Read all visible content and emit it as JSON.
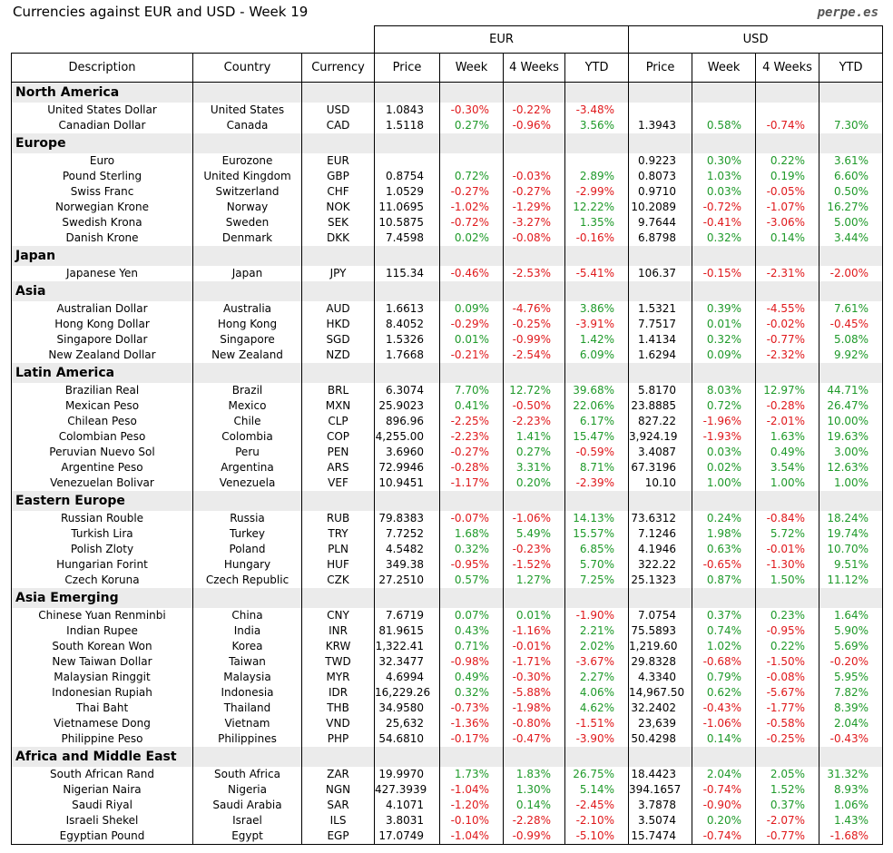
{
  "title": "Currencies against EUR and USD - Week 19",
  "source": "perpe.es",
  "groups": [
    "EUR",
    "USD"
  ],
  "columns": [
    "Description",
    "Country",
    "Currency",
    "Price",
    "Week",
    "4 Weeks",
    "YTD",
    "Price",
    "Week",
    "4 Weeks",
    "YTD"
  ],
  "sections": [
    {
      "name": "North America",
      "rows": [
        [
          "United States Dollar",
          "United States",
          "USD",
          "1.0843",
          "-0.30%",
          "-0.22%",
          "-3.48%",
          null,
          null,
          null,
          null
        ],
        [
          "Canadian Dollar",
          "Canada",
          "CAD",
          "1.5118",
          "0.27%",
          "-0.96%",
          "3.56%",
          "1.3943",
          "0.58%",
          "-0.74%",
          "7.30%"
        ]
      ]
    },
    {
      "name": "Europe",
      "rows": [
        [
          "Euro",
          "Eurozone",
          "EUR",
          null,
          null,
          null,
          null,
          "0.9223",
          "0.30%",
          "0.22%",
          "3.61%"
        ],
        [
          "Pound Sterling",
          "United Kingdom",
          "GBP",
          "0.8754",
          "0.72%",
          "-0.03%",
          "2.89%",
          "0.8073",
          "1.03%",
          "0.19%",
          "6.60%"
        ],
        [
          "Swiss Franc",
          "Switzerland",
          "CHF",
          "1.0529",
          "-0.27%",
          "-0.27%",
          "-2.99%",
          "0.9710",
          "0.03%",
          "-0.05%",
          "0.50%"
        ],
        [
          "Norwegian Krone",
          "Norway",
          "NOK",
          "11.0695",
          "-1.02%",
          "-1.29%",
          "12.22%",
          "10.2089",
          "-0.72%",
          "-1.07%",
          "16.27%"
        ],
        [
          "Swedish Krona",
          "Sweden",
          "SEK",
          "10.5875",
          "-0.72%",
          "-3.27%",
          "1.35%",
          "9.7644",
          "-0.41%",
          "-3.06%",
          "5.00%"
        ],
        [
          "Danish Krone",
          "Denmark",
          "DKK",
          "7.4598",
          "0.02%",
          "-0.08%",
          "-0.16%",
          "6.8798",
          "0.32%",
          "0.14%",
          "3.44%"
        ]
      ]
    },
    {
      "name": "Japan",
      "rows": [
        [
          "Japanese Yen",
          "Japan",
          "JPY",
          "115.34",
          "-0.46%",
          "-2.53%",
          "-5.41%",
          "106.37",
          "-0.15%",
          "-2.31%",
          "-2.00%"
        ]
      ]
    },
    {
      "name": "Asia",
      "rows": [
        [
          "Australian Dollar",
          "Australia",
          "AUD",
          "1.6613",
          "0.09%",
          "-4.76%",
          "3.86%",
          "1.5321",
          "0.39%",
          "-4.55%",
          "7.61%"
        ],
        [
          "Hong Kong Dollar",
          "Hong Kong",
          "HKD",
          "8.4052",
          "-0.29%",
          "-0.25%",
          "-3.91%",
          "7.7517",
          "0.01%",
          "-0.02%",
          "-0.45%"
        ],
        [
          "Singapore Dollar",
          "Singapore",
          "SGD",
          "1.5326",
          "0.01%",
          "-0.99%",
          "1.42%",
          "1.4134",
          "0.32%",
          "-0.77%",
          "5.08%"
        ],
        [
          "New Zealand Dollar",
          "New Zealand",
          "NZD",
          "1.7668",
          "-0.21%",
          "-2.54%",
          "6.09%",
          "1.6294",
          "0.09%",
          "-2.32%",
          "9.92%"
        ]
      ]
    },
    {
      "name": "Latin America",
      "rows": [
        [
          "Brazilian Real",
          "Brazil",
          "BRL",
          "6.3074",
          "7.70%",
          "12.72%",
          "39.68%",
          "5.8170",
          "8.03%",
          "12.97%",
          "44.71%"
        ],
        [
          "Mexican Peso",
          "Mexico",
          "MXN",
          "25.9023",
          "0.41%",
          "-0.50%",
          "22.06%",
          "23.8885",
          "0.72%",
          "-0.28%",
          "26.47%"
        ],
        [
          "Chilean Peso",
          "Chile",
          "CLP",
          "896.96",
          "-2.25%",
          "-2.23%",
          "6.17%",
          "827.22",
          "-1.96%",
          "-2.01%",
          "10.00%"
        ],
        [
          "Colombian Peso",
          "Colombia",
          "COP",
          "4,255.00",
          "-2.23%",
          "1.41%",
          "15.47%",
          "3,924.19",
          "-1.93%",
          "1.63%",
          "19.63%"
        ],
        [
          "Peruvian Nuevo Sol",
          "Peru",
          "PEN",
          "3.6960",
          "-0.27%",
          "0.27%",
          "-0.59%",
          "3.4087",
          "0.03%",
          "0.49%",
          "3.00%"
        ],
        [
          "Argentine Peso",
          "Argentina",
          "ARS",
          "72.9946",
          "-0.28%",
          "3.31%",
          "8.71%",
          "67.3196",
          "0.02%",
          "3.54%",
          "12.63%"
        ],
        [
          "Venezuelan Bolivar",
          "Venezuela",
          "VEF",
          "10.9451",
          "-1.17%",
          "0.20%",
          "-2.39%",
          "10.10",
          "1.00%",
          "1.00%",
          "1.00%"
        ]
      ]
    },
    {
      "name": "Eastern Europe",
      "rows": [
        [
          "Russian Rouble",
          "Russia",
          "RUB",
          "79.8383",
          "-0.07%",
          "-1.06%",
          "14.13%",
          "73.6312",
          "0.24%",
          "-0.84%",
          "18.24%"
        ],
        [
          "Turkish Lira",
          "Turkey",
          "TRY",
          "7.7252",
          "1.68%",
          "5.49%",
          "15.57%",
          "7.1246",
          "1.98%",
          "5.72%",
          "19.74%"
        ],
        [
          "Polish Zloty",
          "Poland",
          "PLN",
          "4.5482",
          "0.32%",
          "-0.23%",
          "6.85%",
          "4.1946",
          "0.63%",
          "-0.01%",
          "10.70%"
        ],
        [
          "Hungarian Forint",
          "Hungary",
          "HUF",
          "349.38",
          "-0.95%",
          "-1.52%",
          "5.70%",
          "322.22",
          "-0.65%",
          "-1.30%",
          "9.51%"
        ],
        [
          "Czech Koruna",
          "Czech Republic",
          "CZK",
          "27.2510",
          "0.57%",
          "1.27%",
          "7.25%",
          "25.1323",
          "0.87%",
          "1.50%",
          "11.12%"
        ]
      ]
    },
    {
      "name": "Asia Emerging",
      "rows": [
        [
          "Chinese Yuan Renminbi",
          "China",
          "CNY",
          "7.6719",
          "0.07%",
          "0.01%",
          "-1.90%",
          "7.0754",
          "0.37%",
          "0.23%",
          "1.64%"
        ],
        [
          "Indian Rupee",
          "India",
          "INR",
          "81.9615",
          "0.43%",
          "-1.16%",
          "2.21%",
          "75.5893",
          "0.74%",
          "-0.95%",
          "5.90%"
        ],
        [
          "South Korean Won",
          "Korea",
          "KRW",
          "1,322.41",
          "0.71%",
          "-0.01%",
          "2.02%",
          "1,219.60",
          "1.02%",
          "0.22%",
          "5.69%"
        ],
        [
          "New Taiwan Dollar",
          "Taiwan",
          "TWD",
          "32.3477",
          "-0.98%",
          "-1.71%",
          "-3.67%",
          "29.8328",
          "-0.68%",
          "-1.50%",
          "-0.20%"
        ],
        [
          "Malaysian Ringgit",
          "Malaysia",
          "MYR",
          "4.6994",
          "0.49%",
          "-0.30%",
          "2.27%",
          "4.3340",
          "0.79%",
          "-0.08%",
          "5.95%"
        ],
        [
          "Indonesian Rupiah",
          "Indonesia",
          "IDR",
          "16,229.26",
          "0.32%",
          "-5.88%",
          "4.06%",
          "14,967.50",
          "0.62%",
          "-5.67%",
          "7.82%"
        ],
        [
          "Thai Baht",
          "Thailand",
          "THB",
          "34.9580",
          "-0.73%",
          "-1.98%",
          "4.62%",
          "32.2402",
          "-0.43%",
          "-1.77%",
          "8.39%"
        ],
        [
          "Vietnamese Dong",
          "Vietnam",
          "VND",
          "25,632",
          "-1.36%",
          "-0.80%",
          "-1.51%",
          "23,639",
          "-1.06%",
          "-0.58%",
          "2.04%"
        ],
        [
          "Philippine Peso",
          "Philippines",
          "PHP",
          "54.6810",
          "-0.17%",
          "-0.47%",
          "-3.90%",
          "50.4298",
          "0.14%",
          "-0.25%",
          "-0.43%"
        ]
      ]
    },
    {
      "name": "Africa and Middle East",
      "rows": [
        [
          "South African Rand",
          "South Africa",
          "ZAR",
          "19.9970",
          "1.73%",
          "1.83%",
          "26.75%",
          "18.4423",
          "2.04%",
          "2.05%",
          "31.32%"
        ],
        [
          "Nigerian Naira",
          "Nigeria",
          "NGN",
          "427.3939",
          "-1.04%",
          "1.30%",
          "5.14%",
          "394.1657",
          "-0.74%",
          "1.52%",
          "8.93%"
        ],
        [
          "Saudi Riyal",
          "Saudi Arabia",
          "SAR",
          "4.1071",
          "-1.20%",
          "0.14%",
          "-2.45%",
          "3.7878",
          "-0.90%",
          "0.37%",
          "1.06%"
        ],
        [
          "Israeli Shekel",
          "Israel",
          "ILS",
          "3.8031",
          "-0.10%",
          "-2.28%",
          "-2.10%",
          "3.5074",
          "0.20%",
          "-2.07%",
          "1.43%"
        ],
        [
          "Egyptian Pound",
          "Egypt",
          "EGP",
          "17.0749",
          "-1.04%",
          "-0.99%",
          "-5.10%",
          "15.7474",
          "-0.74%",
          "-0.77%",
          "-1.68%"
        ]
      ]
    }
  ]
}
